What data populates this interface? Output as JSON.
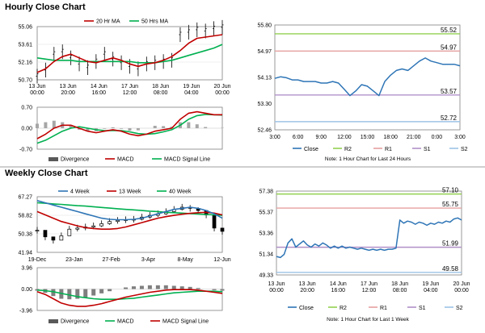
{
  "sections": {
    "hourly_title": "Hourly Close Chart",
    "weekly_title": "Weekly Close Chart"
  },
  "colors": {
    "ma_short": "#c00000",
    "ma_long": "#00b050",
    "macd": "#c00000",
    "signal": "#00b050",
    "close": "#2e75b6",
    "r2": "#92d050",
    "r1": "#e6a0a0",
    "s1": "#b090c8",
    "s2": "#9dc3e6",
    "wk4": "#2e75b6",
    "wk13": "#c00000",
    "wk40": "#00b050"
  },
  "chart_data": [
    {
      "id": "hourly_price",
      "type": "line",
      "legend": [
        "20 Hr MA",
        "50 Hrs MA"
      ],
      "yticks": [
        "55.06",
        "53.61",
        "52.16",
        "50.70"
      ],
      "ylim": [
        50.7,
        55.06
      ],
      "xticks": [
        "13 Jun\n00:00",
        "13 Jun\n20:00",
        "14 Jun\n16:00",
        "17 Jun\n12:00",
        "18 Jun\n08:00",
        "19 Jun\n04:00",
        "20 Jun\n00:00"
      ],
      "series": [
        {
          "name": "20 Hr MA",
          "values": [
            51.3,
            51.6,
            52.2,
            52.6,
            52.8,
            52.5,
            52.2,
            52.1,
            52.3,
            52.5,
            52.3,
            52.0,
            51.8,
            52.0,
            52.1,
            52.3,
            52.6,
            53.1,
            53.7,
            54.1,
            54.2,
            54.3,
            54.4
          ]
        },
        {
          "name": "50 Hrs MA",
          "values": [
            52.5,
            52.4,
            52.3,
            52.3,
            52.3,
            52.2,
            52.2,
            52.2,
            52.2,
            52.2,
            52.2,
            52.2,
            52.1,
            52.1,
            52.1,
            52.2,
            52.3,
            52.5,
            52.7,
            52.9,
            53.1,
            53.3,
            53.6
          ]
        }
      ],
      "price": [
        51.0,
        51.5,
        52.8,
        53.0,
        52.5,
        52.0,
        51.7,
        52.2,
        52.8,
        52.4,
        52.1,
        51.8,
        51.6,
        52.0,
        52.1,
        52.2,
        52.3,
        54.4,
        54.6,
        54.8,
        54.7,
        54.9,
        55.0
      ]
    },
    {
      "id": "hourly_macd",
      "type": "line",
      "legend": [
        "Divergence",
        "MACD",
        "MACD Signal Line"
      ],
      "yticks": [
        "0.70",
        "0.00",
        "-0.70"
      ],
      "ylim": [
        -0.7,
        0.7
      ],
      "series": [
        {
          "name": "MACD",
          "values": [
            -0.35,
            -0.2,
            0.0,
            0.1,
            0.1,
            0.0,
            -0.1,
            -0.15,
            -0.1,
            -0.05,
            -0.1,
            -0.2,
            -0.25,
            -0.2,
            -0.1,
            -0.05,
            0.0,
            0.3,
            0.5,
            0.55,
            0.5,
            0.45,
            0.45
          ]
        },
        {
          "name": "MACD Signal Line",
          "values": [
            -0.5,
            -0.4,
            -0.25,
            -0.1,
            0.0,
            0.05,
            0.0,
            -0.05,
            -0.08,
            -0.08,
            -0.08,
            -0.12,
            -0.18,
            -0.2,
            -0.18,
            -0.12,
            -0.05,
            0.1,
            0.3,
            0.42,
            0.46,
            0.45,
            0.44
          ]
        },
        {
          "name": "Divergence",
          "values": [
            0.15,
            0.2,
            0.25,
            0.2,
            0.1,
            -0.05,
            -0.1,
            -0.1,
            -0.02,
            0.03,
            -0.02,
            -0.08,
            -0.07,
            0.0,
            0.08,
            0.07,
            0.05,
            0.2,
            0.2,
            0.13,
            0.04,
            0.0,
            0.01
          ]
        }
      ]
    },
    {
      "id": "hourly_close",
      "type": "line",
      "legend": [
        "Close",
        "R2",
        "R1",
        "S1",
        "S2"
      ],
      "yticks": [
        "55.80",
        "54.97",
        "54.13",
        "53.30",
        "52.46"
      ],
      "ylim": [
        52.46,
        55.8
      ],
      "xticks": [
        "3:00",
        "6:00",
        "9:00",
        "12:00",
        "15:00",
        "18:00",
        "21:00",
        "0:00",
        "3:00"
      ],
      "levels": [
        {
          "name": "R2",
          "value": 55.52,
          "label": "55.52"
        },
        {
          "name": "R1",
          "value": 54.97,
          "label": "54.97"
        },
        {
          "name": "S1",
          "value": 53.57,
          "label": "53.57"
        },
        {
          "name": "S2",
          "value": 52.72,
          "label": "52.72"
        }
      ],
      "close": [
        54.1,
        54.15,
        54.12,
        54.05,
        54.05,
        54.0,
        54.0,
        54.0,
        53.95,
        53.95,
        54.0,
        53.95,
        53.75,
        53.55,
        53.7,
        53.9,
        53.85,
        53.7,
        53.55,
        54.0,
        54.2,
        54.35,
        54.4,
        54.35,
        54.5,
        54.65,
        54.75,
        54.65,
        54.6,
        54.55,
        54.55,
        54.55,
        54.5
      ],
      "note": "Note: 1 Hour Chart for Last 24 Hours"
    },
    {
      "id": "weekly_price",
      "type": "line",
      "legend": [
        "4 Week",
        "13 Week",
        "40 Week"
      ],
      "yticks": [
        "67.27",
        "58.82",
        "50.38",
        "41.94"
      ],
      "ylim": [
        41.94,
        67.27
      ],
      "xticks": [
        "19-Dec",
        "23-Jan",
        "27-Feb",
        "3-Apr",
        "8-May",
        "12-Jun"
      ],
      "series": [
        {
          "name": "4 Week",
          "values": [
            65.5,
            64.5,
            63.5,
            62.5,
            61.5,
            60.5,
            59.5,
            58.5,
            57.5,
            57.0,
            56.8,
            56.8,
            57.0,
            57.5,
            58.5,
            59.5,
            60.5,
            61.5,
            62.0,
            62.5,
            62.0,
            61.0,
            59.5,
            57.5
          ]
        },
        {
          "name": "13 Week",
          "values": [
            60.5,
            59.0,
            57.5,
            56.0,
            55.0,
            54.0,
            53.2,
            52.8,
            52.5,
            52.5,
            52.8,
            53.5,
            54.5,
            55.5,
            56.5,
            57.5,
            58.2,
            58.8,
            59.3,
            59.7,
            60.0,
            60.2,
            59.8,
            59.0
          ]
        },
        {
          "name": "40 Week",
          "values": [
            64.5,
            64.3,
            64.0,
            63.8,
            63.5,
            63.2,
            63.0,
            62.7,
            62.4,
            62.1,
            61.8,
            61.5,
            61.3,
            61.0,
            60.7,
            60.5,
            60.2,
            60.0,
            59.8,
            59.6,
            59.4,
            59.2,
            59.0,
            58.8
          ]
        }
      ],
      "price": [
        52.0,
        49.0,
        47.5,
        49.5,
        52.5,
        53.0,
        53.5,
        54.0,
        55.0,
        56.0,
        56.5,
        56.8,
        57.0,
        58.0,
        58.8,
        59.5,
        60.5,
        61.5,
        62.5,
        62.0,
        61.0,
        59.0,
        53.0,
        51.5
      ]
    },
    {
      "id": "weekly_macd",
      "type": "line",
      "legend": [
        "Divergence",
        "MACD",
        "MACD Signal Line"
      ],
      "yticks": [
        "3.96",
        "0.00",
        "-3.96"
      ],
      "ylim": [
        -3.96,
        3.96
      ],
      "series": [
        {
          "name": "MACD",
          "values": [
            -0.5,
            -1.0,
            -1.8,
            -2.6,
            -3.0,
            -3.2,
            -3.2,
            -3.0,
            -2.7,
            -2.3,
            -1.9,
            -1.5,
            -1.2,
            -0.9,
            -0.6,
            -0.4,
            -0.2,
            -0.1,
            -0.1,
            -0.1,
            -0.2,
            -0.4,
            -0.6,
            -0.8
          ]
        },
        {
          "name": "MACD Signal Line",
          "values": [
            -0.2,
            -0.3,
            -0.5,
            -0.8,
            -1.1,
            -1.4,
            -1.6,
            -1.8,
            -1.9,
            -1.9,
            -1.9,
            -1.8,
            -1.7,
            -1.5,
            -1.3,
            -1.1,
            -0.9,
            -0.7,
            -0.6,
            -0.5,
            -0.4,
            -0.4,
            -0.4,
            -0.5
          ]
        },
        {
          "name": "Divergence",
          "values": [
            -0.3,
            -0.7,
            -1.3,
            -1.8,
            -1.9,
            -1.8,
            -1.6,
            -1.2,
            -0.8,
            -0.4,
            0.0,
            0.3,
            0.5,
            0.6,
            0.7,
            0.7,
            0.7,
            0.6,
            0.5,
            0.4,
            0.2,
            0.0,
            -0.2,
            -0.3
          ]
        }
      ]
    },
    {
      "id": "weekly_close",
      "type": "line",
      "legend": [
        "Close",
        "R2",
        "R1",
        "S1",
        "S2"
      ],
      "yticks": [
        "57.38",
        "55.37",
        "53.36",
        "51.34",
        "49.33"
      ],
      "ylim": [
        49.33,
        57.38
      ],
      "xticks": [
        "13 Jun\n00:00",
        "13 Jun\n20:00",
        "14 Jun\n16:00",
        "17 Jun\n12:00",
        "18 Jun\n08:00",
        "19 Jun\n04:00",
        "20 Jun\n00:00"
      ],
      "levels": [
        {
          "name": "R2",
          "value": 57.1,
          "label": "57.10"
        },
        {
          "name": "R1",
          "value": 55.75,
          "label": "55.75"
        },
        {
          "name": "S1",
          "value": 51.99,
          "label": "51.99"
        },
        {
          "name": "S2",
          "value": 49.58,
          "label": "49.58"
        }
      ],
      "close": [
        51.1,
        51.0,
        51.3,
        52.4,
        52.8,
        52.0,
        52.3,
        52.6,
        52.2,
        52.0,
        52.3,
        52.1,
        52.4,
        52.2,
        51.9,
        52.1,
        51.9,
        52.1,
        51.9,
        52.0,
        51.9,
        51.8,
        51.9,
        51.8,
        51.7,
        51.8,
        51.7,
        51.8,
        51.7,
        51.8,
        51.8,
        51.9,
        54.6,
        54.3,
        54.5,
        54.4,
        54.2,
        54.4,
        54.3,
        54.1,
        54.3,
        54.2,
        54.4,
        54.3,
        54.5,
        54.4,
        54.7,
        54.8,
        54.6
      ],
      "note": "Note: 1 Hour Chart for Last 1 Week"
    }
  ]
}
